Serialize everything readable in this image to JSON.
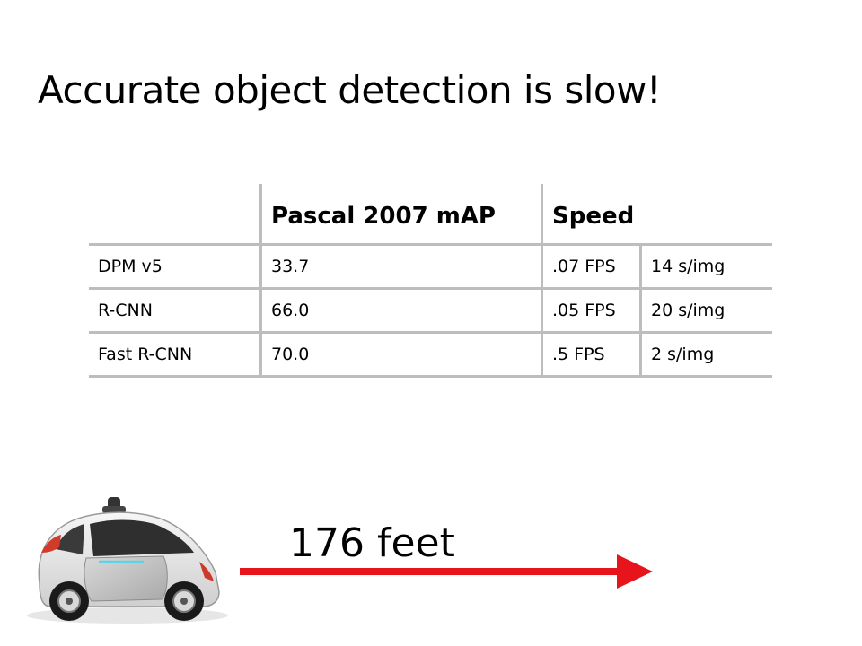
{
  "slide": {
    "title": "Accurate object detection is slow!"
  },
  "table": {
    "headers": [
      "",
      "Pascal 2007 mAP",
      "Speed",
      ""
    ],
    "rows": [
      [
        "DPM v5",
        "33.7",
        ".07 FPS",
        "14 s/img"
      ],
      [
        "R-CNN",
        "66.0",
        ".05 FPS",
        "20 s/img"
      ],
      [
        "Fast R-CNN",
        "70.0",
        ".5 FPS",
        "2 s/img"
      ]
    ]
  },
  "illustration": {
    "image": "self-driving-car",
    "distance_label": "176 feet",
    "arrow_color": "#e8141c"
  }
}
